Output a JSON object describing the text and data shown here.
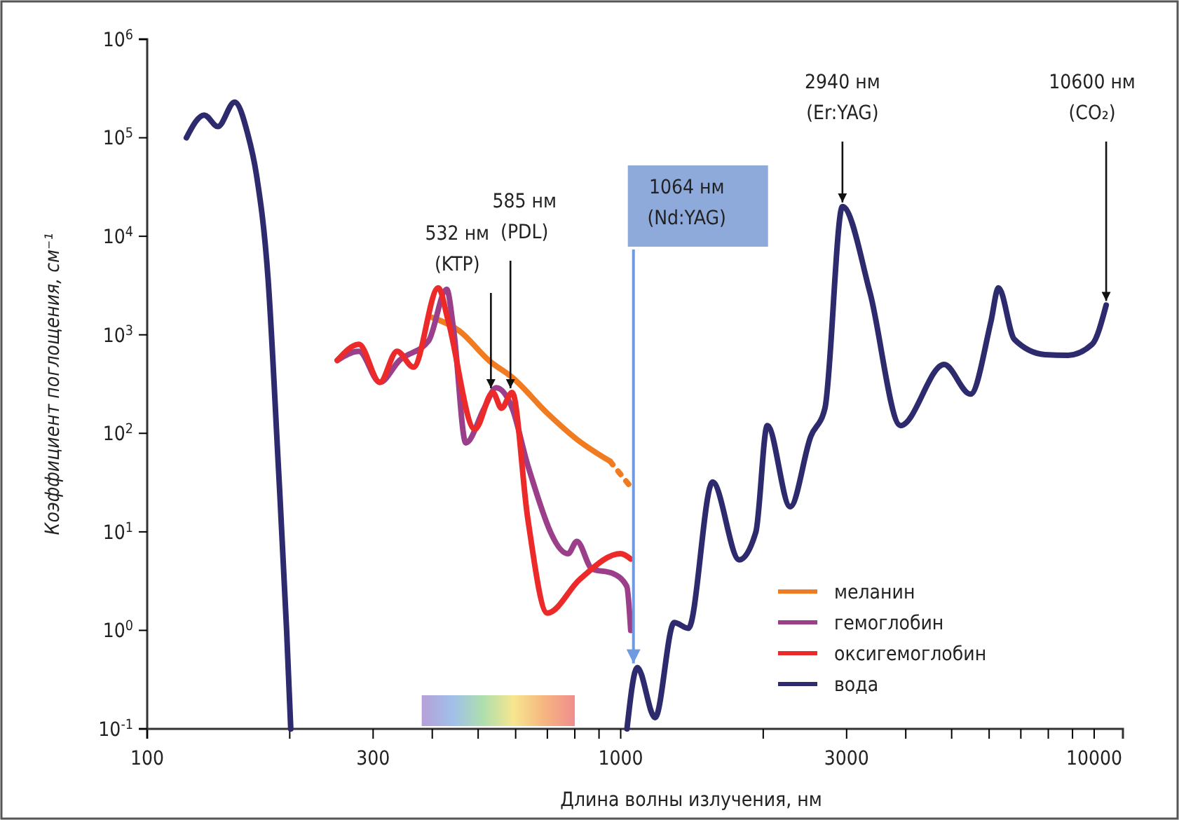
{
  "chart_data": {
    "type": "line",
    "xlabel": "Длина волны излучения, нм",
    "ylabel": "Коэффициент поглощения, см⁻¹",
    "log": "xy",
    "xlim": [
      100,
      11500
    ],
    "ylim": [
      0.1,
      1000000
    ],
    "xticks": [
      100,
      {
        "value": 200,
        "label": null
      },
      300,
      {
        "value": 400,
        "label": null
      },
      {
        "value": 500,
        "label": null
      },
      {
        "value": 600,
        "label": null
      },
      {
        "value": 700,
        "label": null
      },
      {
        "value": 800,
        "label": null
      },
      {
        "value": 900,
        "label": null
      },
      1000,
      {
        "value": 2000,
        "label": null
      },
      3000,
      {
        "value": 4000,
        "label": null
      },
      {
        "value": 5000,
        "label": null
      },
      {
        "value": 6000,
        "label": null
      },
      {
        "value": 7000,
        "label": null
      },
      {
        "value": 8000,
        "label": null
      },
      {
        "value": 9000,
        "label": null
      },
      10000
    ],
    "yticks": [
      {
        "value": 0.1,
        "label": "10$^{-1}$"
      },
      {
        "value": 1,
        "label": "10$^{0}$"
      },
      {
        "value": 10,
        "label": "10$^{1}$"
      },
      {
        "value": 100,
        "label": "10$^{2}$"
      },
      {
        "value": 1000,
        "label": "10$^{3}$"
      },
      {
        "value": 10000,
        "label": "10$^{4}$"
      },
      {
        "value": 100000,
        "label": "10$^{5}$"
      },
      {
        "value": 1000000,
        "label": "10$^{6}$"
      }
    ],
    "grid": false,
    "legend": "bottom right",
    "line_style": "solid",
    "marker": "none",
    "series": [
      {
        "name": "меланин",
        "color": "#f07b20",
        "x": [
          400,
          456,
          529,
          590,
          700,
          808,
          950
        ],
        "values": [
          1500,
          1100,
          540,
          370,
          160,
          87,
          52
        ]
      },
      {
        "color": "#f07b20",
        "line_style": "dotted",
        "x": [
          950,
          1060
        ],
        "values": [
          52,
          27
        ]
      },
      {
        "name": "гемоглобин",
        "color": "#9b3f8a",
        "x": [
          252,
          280,
          310,
          341,
          393,
          429,
          444,
          471,
          515,
          546,
          590,
          636,
          774,
          808,
          870,
          960,
          1030,
          1050
        ],
        "values": [
          550,
          680,
          330,
          550,
          870,
          2900,
          1100,
          80,
          180,
          290,
          180,
          48,
          6,
          8,
          4.2,
          3.8,
          2.8,
          1
        ]
      },
      {
        "name": "оксигемоглобин",
        "color": "#ec2a2a",
        "x": [
          252,
          280,
          310,
          337,
          365,
          412,
          432,
          492,
          537,
          560,
          590,
          636,
          700,
          820,
          1000,
          1050
        ],
        "values": [
          550,
          800,
          330,
          680,
          470,
          3000,
          1400,
          110,
          260,
          180,
          260,
          14,
          1.5,
          3.3,
          6,
          5.3
        ]
      },
      {
        "name": "вода",
        "color": "#2e2a6e",
        "x": [
          121,
          132,
          141,
          153,
          163,
          170,
          180,
          189,
          197,
          201,
          600,
          1031,
          1084,
          1182,
          1297,
          1390,
          1563,
          1780,
          1930,
          2040,
          2280,
          2520,
          2700,
          2940,
          3360,
          3900,
          4820,
          5480,
          6050,
          6280,
          6780,
          7870,
          8800,
          9900,
          10600
        ],
        "values": [
          100000,
          170000,
          130000,
          230000,
          110000,
          43000,
          3700,
          52,
          1,
          0.1,
          null,
          0.1,
          0.42,
          0.13,
          1.2,
          1.05,
          32,
          5.2,
          10,
          120,
          18,
          93,
          180,
          20000,
          2700,
          120,
          500,
          250,
          1350,
          3000,
          900,
          630,
          620,
          800,
          2000
        ]
      }
    ],
    "bands": [
      {
        "axis": "x",
        "from": 380,
        "to": 800
      }
    ],
    "annotations": [
      {
        "text": "532 нм\n(KTP)",
        "x": 532,
        "y": 260
      },
      {
        "text": "585 нм\n(PDL)",
        "x": 585,
        "y": 260
      },
      {
        "text": "1064 нм\n(Nd:YAG)",
        "x": 1064,
        "y": 0.42
      },
      {
        "text": "2940 нм\n(Er:YAG)",
        "x": 2940,
        "y": 20000
      },
      {
        "text": "10600 нм\n(CO₂)",
        "x": 10600,
        "y": 2000
      }
    ]
  }
}
